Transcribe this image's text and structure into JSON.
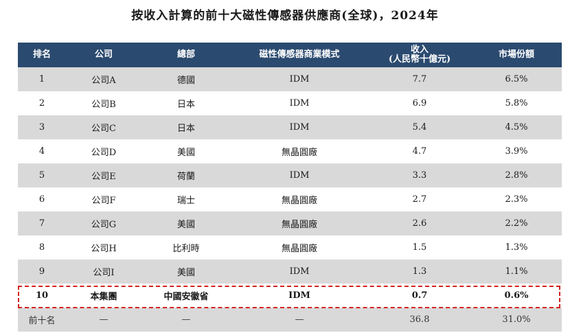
{
  "title": "按收入計算的前十大磁性傳感器供應商(全球)，2024年",
  "headers": {
    "rank": "排名",
    "company": "公司",
    "hq": "總部",
    "model": "磁性傳感器商業模式",
    "revenue_line1": "收入",
    "revenue_line2": "(人民幣十億元)",
    "share": "市場份額"
  },
  "rows": [
    {
      "rank": "1",
      "company": "公司A",
      "hq": "德國",
      "model": "IDM",
      "revenue": "7.7",
      "share": "6.5%"
    },
    {
      "rank": "2",
      "company": "公司B",
      "hq": "日本",
      "model": "IDM",
      "revenue": "6.9",
      "share": "5.8%"
    },
    {
      "rank": "3",
      "company": "公司C",
      "hq": "日本",
      "model": "IDM",
      "revenue": "5.4",
      "share": "4.5%"
    },
    {
      "rank": "4",
      "company": "公司D",
      "hq": "美國",
      "model": "無晶圓廠",
      "revenue": "4.7",
      "share": "3.9%"
    },
    {
      "rank": "5",
      "company": "公司E",
      "hq": "荷蘭",
      "model": "IDM",
      "revenue": "3.3",
      "share": "2.8%"
    },
    {
      "rank": "6",
      "company": "公司F",
      "hq": "瑞士",
      "model": "無晶圓廠",
      "revenue": "2.7",
      "share": "2.3%"
    },
    {
      "rank": "7",
      "company": "公司G",
      "hq": "美國",
      "model": "無晶圓廠",
      "revenue": "2.6",
      "share": "2.2%"
    },
    {
      "rank": "8",
      "company": "公司H",
      "hq": "比利時",
      "model": "無晶圓廠",
      "revenue": "1.5",
      "share": "1.3%"
    },
    {
      "rank": "9",
      "company": "公司I",
      "hq": "美國",
      "model": "IDM",
      "revenue": "1.3",
      "share": "1.1%"
    },
    {
      "rank": "10",
      "company": "本集團",
      "hq": "中國安徽省",
      "model": "IDM",
      "revenue": "0.7",
      "share": "0.6%"
    }
  ],
  "total": {
    "rank": "前十名",
    "company": "—",
    "hq": "—",
    "model": "—",
    "revenue": "36.8",
    "share": "31.0%"
  },
  "colors": {
    "header_bg": "#2b4a6f",
    "stripe": "#d9d9d9",
    "highlight_border": "#d42020"
  }
}
